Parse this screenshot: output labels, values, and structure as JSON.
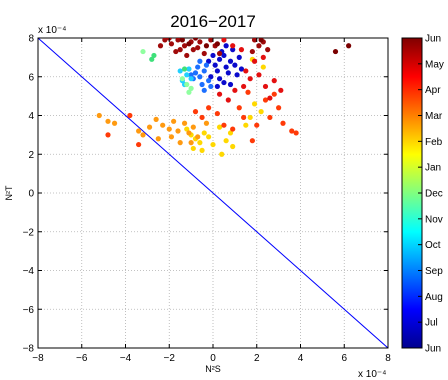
{
  "chart_data": {
    "type": "scatter",
    "title": "2016−2017",
    "xlabel": "N²S",
    "ylabel": "N²T",
    "xlim": [
      -8,
      8
    ],
    "ylim": [
      -8,
      8
    ],
    "xticks": [
      -8,
      -6,
      -4,
      -2,
      0,
      2,
      4,
      6,
      8
    ],
    "yticks": [
      -8,
      -6,
      -4,
      -2,
      0,
      2,
      4,
      6,
      8
    ],
    "x_exponent_label": "x 10⁻⁴",
    "y_exponent_label": "x 10⁻⁴",
    "grid": true,
    "reference_line": {
      "x": [
        -8,
        8
      ],
      "y": [
        8,
        -8
      ],
      "color": "#0000ff"
    },
    "colorbar": {
      "ticks": [
        "Jun",
        "Jul",
        "Aug",
        "Sep",
        "Oct",
        "Nov",
        "Dec",
        "Jan",
        "Feb",
        "Mar",
        "Apr",
        "May",
        "Jun"
      ],
      "colors": [
        "#00008f",
        "#0000ff",
        "#0080ff",
        "#00ffff",
        "#80ff80",
        "#ffff00",
        "#ff8000",
        "#ff0000",
        "#800000"
      ]
    },
    "point_groups": [
      {
        "month": "Jun-Jul",
        "color": "#0a0acc",
        "points": [
          [
            0.1,
            6.6
          ],
          [
            0.3,
            6.9
          ],
          [
            0.5,
            7.1
          ],
          [
            0.2,
            6.3
          ],
          [
            0.6,
            6.5
          ],
          [
            0.8,
            6.8
          ],
          [
            0.4,
            7.3
          ],
          [
            -0.1,
            6.0
          ],
          [
            0.7,
            6.2
          ],
          [
            1.0,
            6.6
          ],
          [
            0.3,
            5.9
          ],
          [
            1.2,
            7.0
          ],
          [
            0.9,
            7.4
          ],
          [
            0.5,
            5.7
          ],
          [
            -0.2,
            6.8
          ],
          [
            1.1,
            6.1
          ],
          [
            0.6,
            7.6
          ],
          [
            0.2,
            5.5
          ],
          [
            0.8,
            5.6
          ],
          [
            1.3,
            6.4
          ],
          [
            0.0,
            7.1
          ]
        ]
      },
      {
        "month": "Aug-Sep",
        "color": "#1c6fff",
        "points": [
          [
            -0.6,
            6.0
          ],
          [
            -0.4,
            6.3
          ],
          [
            -0.2,
            5.8
          ],
          [
            -0.8,
            6.2
          ],
          [
            -0.5,
            5.6
          ],
          [
            -0.3,
            6.6
          ],
          [
            -0.9,
            5.9
          ],
          [
            -0.1,
            5.5
          ],
          [
            -0.7,
            6.5
          ],
          [
            -1.0,
            6.1
          ],
          [
            -0.4,
            5.3
          ],
          [
            -0.6,
            6.8
          ]
        ]
      },
      {
        "month": "Oct",
        "color": "#20d0ff",
        "points": [
          [
            -1.2,
            6.1
          ],
          [
            -1.4,
            5.8
          ],
          [
            -1.1,
            6.4
          ],
          [
            -1.3,
            5.6
          ],
          [
            -1.0,
            5.9
          ],
          [
            -1.5,
            6.3
          ]
        ]
      },
      {
        "month": "Nov",
        "color": "#90ffa0",
        "points": [
          [
            -1.2,
            5.6
          ],
          [
            -1.0,
            5.4
          ],
          [
            -1.4,
            5.9
          ],
          [
            -1.1,
            5.2
          ],
          [
            -3.2,
            7.3
          ]
        ]
      },
      {
        "month": "Dec",
        "color": "#3ee07a",
        "points": [
          [
            -2.8,
            6.9
          ],
          [
            -2.7,
            7.1
          ],
          [
            -1.3,
            6.4
          ]
        ]
      },
      {
        "month": "Jan",
        "color": "#ffd800",
        "points": [
          [
            -0.8,
            2.8
          ],
          [
            -0.6,
            2.6
          ],
          [
            -1.0,
            3.0
          ],
          [
            -0.4,
            3.1
          ],
          [
            0.0,
            2.5
          ],
          [
            -0.2,
            2.9
          ],
          [
            -1.2,
            3.3
          ],
          [
            0.6,
            2.7
          ],
          [
            0.9,
            2.4
          ],
          [
            0.3,
            3.4
          ],
          [
            -0.5,
            2.2
          ],
          [
            0.8,
            3.1
          ],
          [
            1.5,
            3.5
          ],
          [
            1.9,
            4.6
          ],
          [
            2.2,
            4.2
          ],
          [
            1.7,
            3.9
          ],
          [
            -0.9,
            2.3
          ],
          [
            0.4,
            2.0
          ],
          [
            1.8,
            6.9
          ],
          [
            2.3,
            6.5
          ]
        ]
      },
      {
        "month": "Feb",
        "color": "#ff9a10",
        "points": [
          [
            -2.6,
            3.8
          ],
          [
            -2.3,
            3.5
          ],
          [
            -2.0,
            3.3
          ],
          [
            -1.8,
            3.7
          ],
          [
            -1.6,
            3.2
          ],
          [
            -1.3,
            3.6
          ],
          [
            -1.1,
            3.1
          ],
          [
            -0.9,
            3.4
          ],
          [
            -0.7,
            2.9
          ],
          [
            -2.9,
            3.4
          ],
          [
            -3.2,
            3.0
          ],
          [
            -2.5,
            2.8
          ],
          [
            -5.2,
            4.0
          ],
          [
            -4.8,
            3.7
          ],
          [
            -4.5,
            3.6
          ],
          [
            -3.4,
            3.2
          ],
          [
            -1.9,
            2.9
          ],
          [
            -1.5,
            2.6
          ],
          [
            -0.3,
            3.6
          ],
          [
            -1.0,
            2.6
          ]
        ]
      },
      {
        "month": "Mar",
        "color": "#ff3a08",
        "points": [
          [
            -4.8,
            3.0
          ],
          [
            -3.8,
            4.0
          ],
          [
            -3.4,
            2.5
          ],
          [
            -0.8,
            4.2
          ],
          [
            -0.5,
            3.9
          ],
          [
            0.5,
            3.5
          ],
          [
            0.9,
            3.3
          ],
          [
            1.2,
            4.4
          ],
          [
            1.6,
            5.2
          ],
          [
            2.0,
            3.5
          ],
          [
            2.4,
            4.8
          ],
          [
            2.6,
            3.9
          ],
          [
            3.0,
            4.4
          ],
          [
            3.2,
            3.6
          ],
          [
            3.6,
            3.2
          ],
          [
            3.8,
            3.1
          ],
          [
            0.2,
            4.1
          ],
          [
            1.4,
            3.9
          ],
          [
            2.8,
            5.1
          ],
          [
            -0.2,
            4.4
          ],
          [
            1.8,
            2.7
          ]
        ]
      },
      {
        "month": "Apr",
        "color": "#e41010",
        "points": [
          [
            0.5,
            7.9
          ],
          [
            0.9,
            7.6
          ],
          [
            1.3,
            7.4
          ],
          [
            1.5,
            6.3
          ],
          [
            1.7,
            5.9
          ],
          [
            2.1,
            6.1
          ],
          [
            2.4,
            5.5
          ],
          [
            2.8,
            5.8
          ],
          [
            3.1,
            5.3
          ],
          [
            1.0,
            5.3
          ],
          [
            1.9,
            6.8
          ],
          [
            2.3,
            7.0
          ],
          [
            0.7,
            4.8
          ],
          [
            1.4,
            5.5
          ],
          [
            0.3,
            5.1
          ],
          [
            2.6,
            4.9
          ]
        ]
      },
      {
        "month": "May",
        "color": "#a00a0a",
        "points": [
          [
            -2.2,
            7.9
          ],
          [
            -1.9,
            7.7
          ],
          [
            -1.6,
            7.9
          ],
          [
            -1.3,
            7.6
          ],
          [
            -1.0,
            7.8
          ],
          [
            -0.7,
            7.5
          ],
          [
            -0.4,
            7.2
          ],
          [
            -0.1,
            7.9
          ],
          [
            0.1,
            7.6
          ],
          [
            -2.4,
            7.6
          ],
          [
            -1.7,
            7.3
          ],
          [
            -1.2,
            7.1
          ],
          [
            -0.9,
            7.4
          ],
          [
            -0.6,
            7.8
          ],
          [
            -2.0,
            8.0
          ],
          [
            -1.5,
            7.4
          ],
          [
            1.9,
            7.9
          ],
          [
            2.1,
            7.6
          ],
          [
            2.3,
            7.8
          ],
          [
            2.5,
            7.4
          ],
          [
            1.8,
            7.3
          ],
          [
            0.3,
            7.2
          ]
        ]
      },
      {
        "month": "Jun",
        "color": "#7a0000",
        "points": [
          [
            5.6,
            7.3
          ],
          [
            6.2,
            7.6
          ],
          [
            -0.8,
            8.0
          ],
          [
            -1.4,
            7.9
          ],
          [
            -0.3,
            7.6
          ],
          [
            0.2,
            7.7
          ],
          [
            -1.1,
            7.7
          ],
          [
            2.2,
            7.9
          ]
        ]
      }
    ]
  }
}
